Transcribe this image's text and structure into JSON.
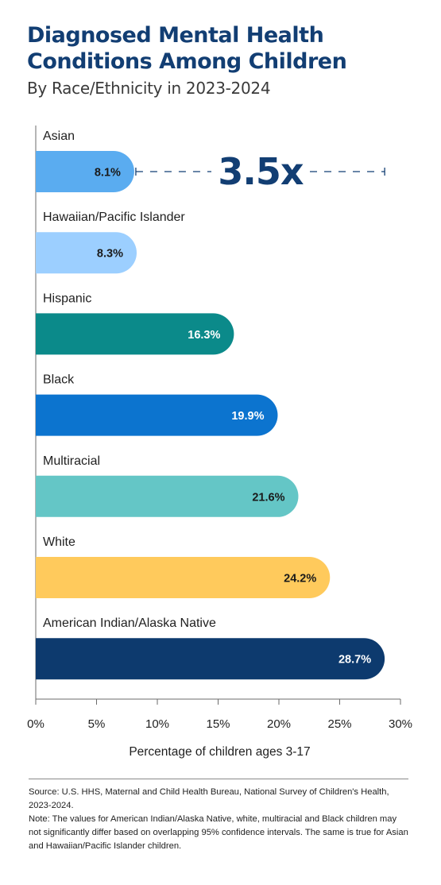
{
  "header": {
    "title_line1": "Diagnosed Mental Health",
    "title_line2": "Conditions Among Children",
    "subtitle": "By Race/Ethnicity in 2023-2024"
  },
  "chart_data": {
    "type": "bar",
    "orientation": "horizontal",
    "categories": [
      "Asian",
      "Hawaiian/Pacific Islander",
      "Hispanic",
      "Black",
      "Multiracial",
      "White",
      "American Indian/Alaska Native"
    ],
    "values": [
      8.1,
      8.3,
      16.3,
      19.9,
      21.6,
      24.2,
      28.7
    ],
    "value_labels": [
      "8.1%",
      "8.3%",
      "16.3%",
      "19.9%",
      "21.6%",
      "24.2%",
      "28.7%"
    ],
    "colors": [
      "#5aacf0",
      "#9ccfff",
      "#0b8a8a",
      "#0c74cf",
      "#64c6c6",
      "#ffca5c",
      "#0d3a6e"
    ],
    "label_colors": [
      "#1a1a1a",
      "#1a1a1a",
      "#ffffff",
      "#ffffff",
      "#1a1a1a",
      "#1a1a1a",
      "#ffffff"
    ],
    "xlim": [
      0,
      30
    ],
    "x_ticks": [
      0,
      5,
      10,
      15,
      20,
      25,
      30
    ],
    "x_tick_labels": [
      "0%",
      "5%",
      "10%",
      "15%",
      "20%",
      "25%",
      "30%"
    ],
    "xlabel": "Percentage of children ages 3-17",
    "annotation": {
      "text": "3.5x",
      "from_value": 8.1,
      "to_value": 28.7,
      "row_index": 0,
      "color": "#123e73"
    }
  },
  "footer": {
    "source": "Source: U.S. HHS, Maternal and Child Health Bureau, National Survey of Children's Health, 2023-2024.",
    "note": "Note: The values for American Indian/Alaska Native, white, multiracial and Black children may not significantly differ based on overlapping 95% confidence intervals. The same is true for Asian and Hawaiian/Pacific Islander children."
  }
}
